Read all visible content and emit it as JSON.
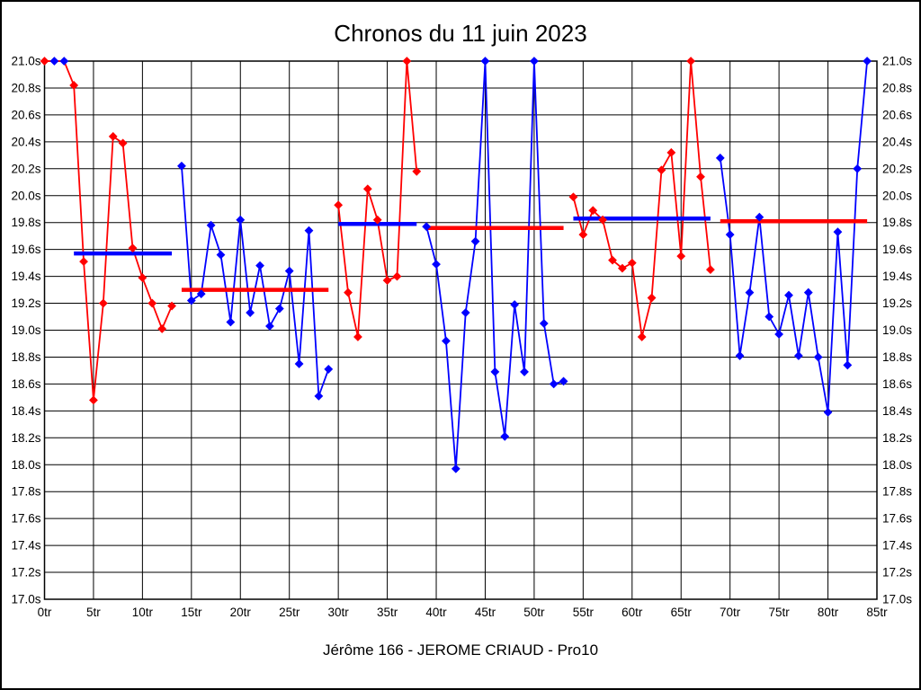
{
  "title": "Chronos du 11 juin 2023",
  "footer": "Jérôme 166 - JEROME CRIAUD - Pro10",
  "colors": {
    "red": "#ff0000",
    "blue": "#0000ff",
    "grid": "#000000",
    "background": "#ffffff"
  },
  "chart_data": {
    "type": "line",
    "title": "Chronos du 11 juin 2023",
    "caption": "Jérôme 166 - JEROME CRIAUD - Pro10",
    "grid": true,
    "legend_position": "none",
    "x_axis": {
      "min": 0,
      "max": 85,
      "tick_step": 5,
      "suffix": "tr"
    },
    "y_axis": {
      "min": 17.0,
      "max": 21.0,
      "tick_step": 0.2,
      "suffix": "s"
    },
    "clip_value": 21.0,
    "series": [
      {
        "name": "relay-1",
        "color": "#ff0000",
        "start_lap": 0,
        "values": [
          21.0,
          21.0,
          21.0,
          20.82,
          19.51,
          18.48,
          19.2,
          20.44,
          20.39,
          19.61,
          19.39,
          19.2,
          19.01,
          19.18
        ],
        "marker_overrides": {
          "1": "#0000ff",
          "2": "#0000ff"
        }
      },
      {
        "name": "relay-2",
        "color": "#0000ff",
        "start_lap": 14,
        "values": [
          20.22,
          19.22,
          19.27,
          19.78,
          19.56,
          19.06,
          19.82,
          19.13,
          19.48,
          19.03,
          19.16,
          19.44,
          18.75,
          19.74,
          18.51,
          18.71
        ],
        "marker_overrides": {}
      },
      {
        "name": "relay-3",
        "color": "#ff0000",
        "start_lap": 30,
        "values": [
          19.93,
          19.28,
          18.95,
          20.05,
          19.82,
          19.37,
          19.4,
          21.0,
          20.18
        ],
        "marker_overrides": {}
      },
      {
        "name": "relay-4",
        "color": "#0000ff",
        "start_lap": 39,
        "values": [
          19.77,
          19.49,
          18.92,
          17.97,
          19.13,
          19.66,
          21.0,
          18.69,
          18.21,
          19.19,
          18.69,
          21.0,
          19.05,
          18.6,
          18.62
        ],
        "marker_overrides": {}
      },
      {
        "name": "relay-5",
        "color": "#ff0000",
        "start_lap": 54,
        "values": [
          19.99,
          19.71,
          19.89,
          19.82,
          19.52,
          19.46,
          19.5,
          18.95,
          19.24,
          20.19,
          20.32,
          19.55,
          21.0,
          20.14,
          19.45
        ],
        "marker_overrides": {}
      },
      {
        "name": "relay-6",
        "color": "#0000ff",
        "start_lap": 69,
        "values": [
          20.28,
          19.71,
          18.81,
          19.28,
          19.84,
          19.1,
          18.97,
          19.26,
          18.81,
          19.28,
          18.8,
          18.39,
          19.73,
          18.74,
          20.2,
          21.0
        ],
        "marker_overrides": {}
      }
    ],
    "average_lines": [
      {
        "from": 3,
        "to": 13,
        "value": 19.57,
        "color": "#0000ff"
      },
      {
        "from": 14,
        "to": 29,
        "value": 19.3,
        "color": "#ff0000"
      },
      {
        "from": 30,
        "to": 38,
        "value": 19.79,
        "color": "#0000ff"
      },
      {
        "from": 39,
        "to": 53,
        "value": 19.76,
        "color": "#ff0000"
      },
      {
        "from": 54,
        "to": 68,
        "value": 19.83,
        "color": "#0000ff"
      },
      {
        "from": 69,
        "to": 84,
        "value": 19.81,
        "color": "#ff0000"
      }
    ]
  }
}
